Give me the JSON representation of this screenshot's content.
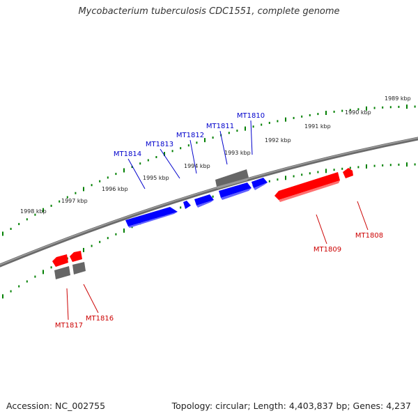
{
  "title": "Mycobacterium tuberculosis CDC1551, complete genome",
  "footer": {
    "accession": "Accession: NC_002755",
    "stats": "Topology: circular; Length: 4,403,837 bp; Genes: 4,237"
  },
  "kbp_labels": [
    "1989 kbp",
    "1990 kbp",
    "1991 kbp",
    "1992 kbp",
    "1993 kbp",
    "1994 kbp",
    "1995 kbp",
    "1996 kbp",
    "1997 kbp",
    "1998 kbp"
  ],
  "genes_forward": [
    "MT1810",
    "MT1811",
    "MT1812",
    "MT1813",
    "MT1814"
  ],
  "genes_reverse": [
    "MT1808",
    "MT1809",
    "MT1816",
    "MT1817"
  ],
  "colors": {
    "forward": "#0000ff",
    "reverse": "#ff0000",
    "other": "#666666",
    "backbone": "#808080",
    "ticks": "#008000"
  }
}
